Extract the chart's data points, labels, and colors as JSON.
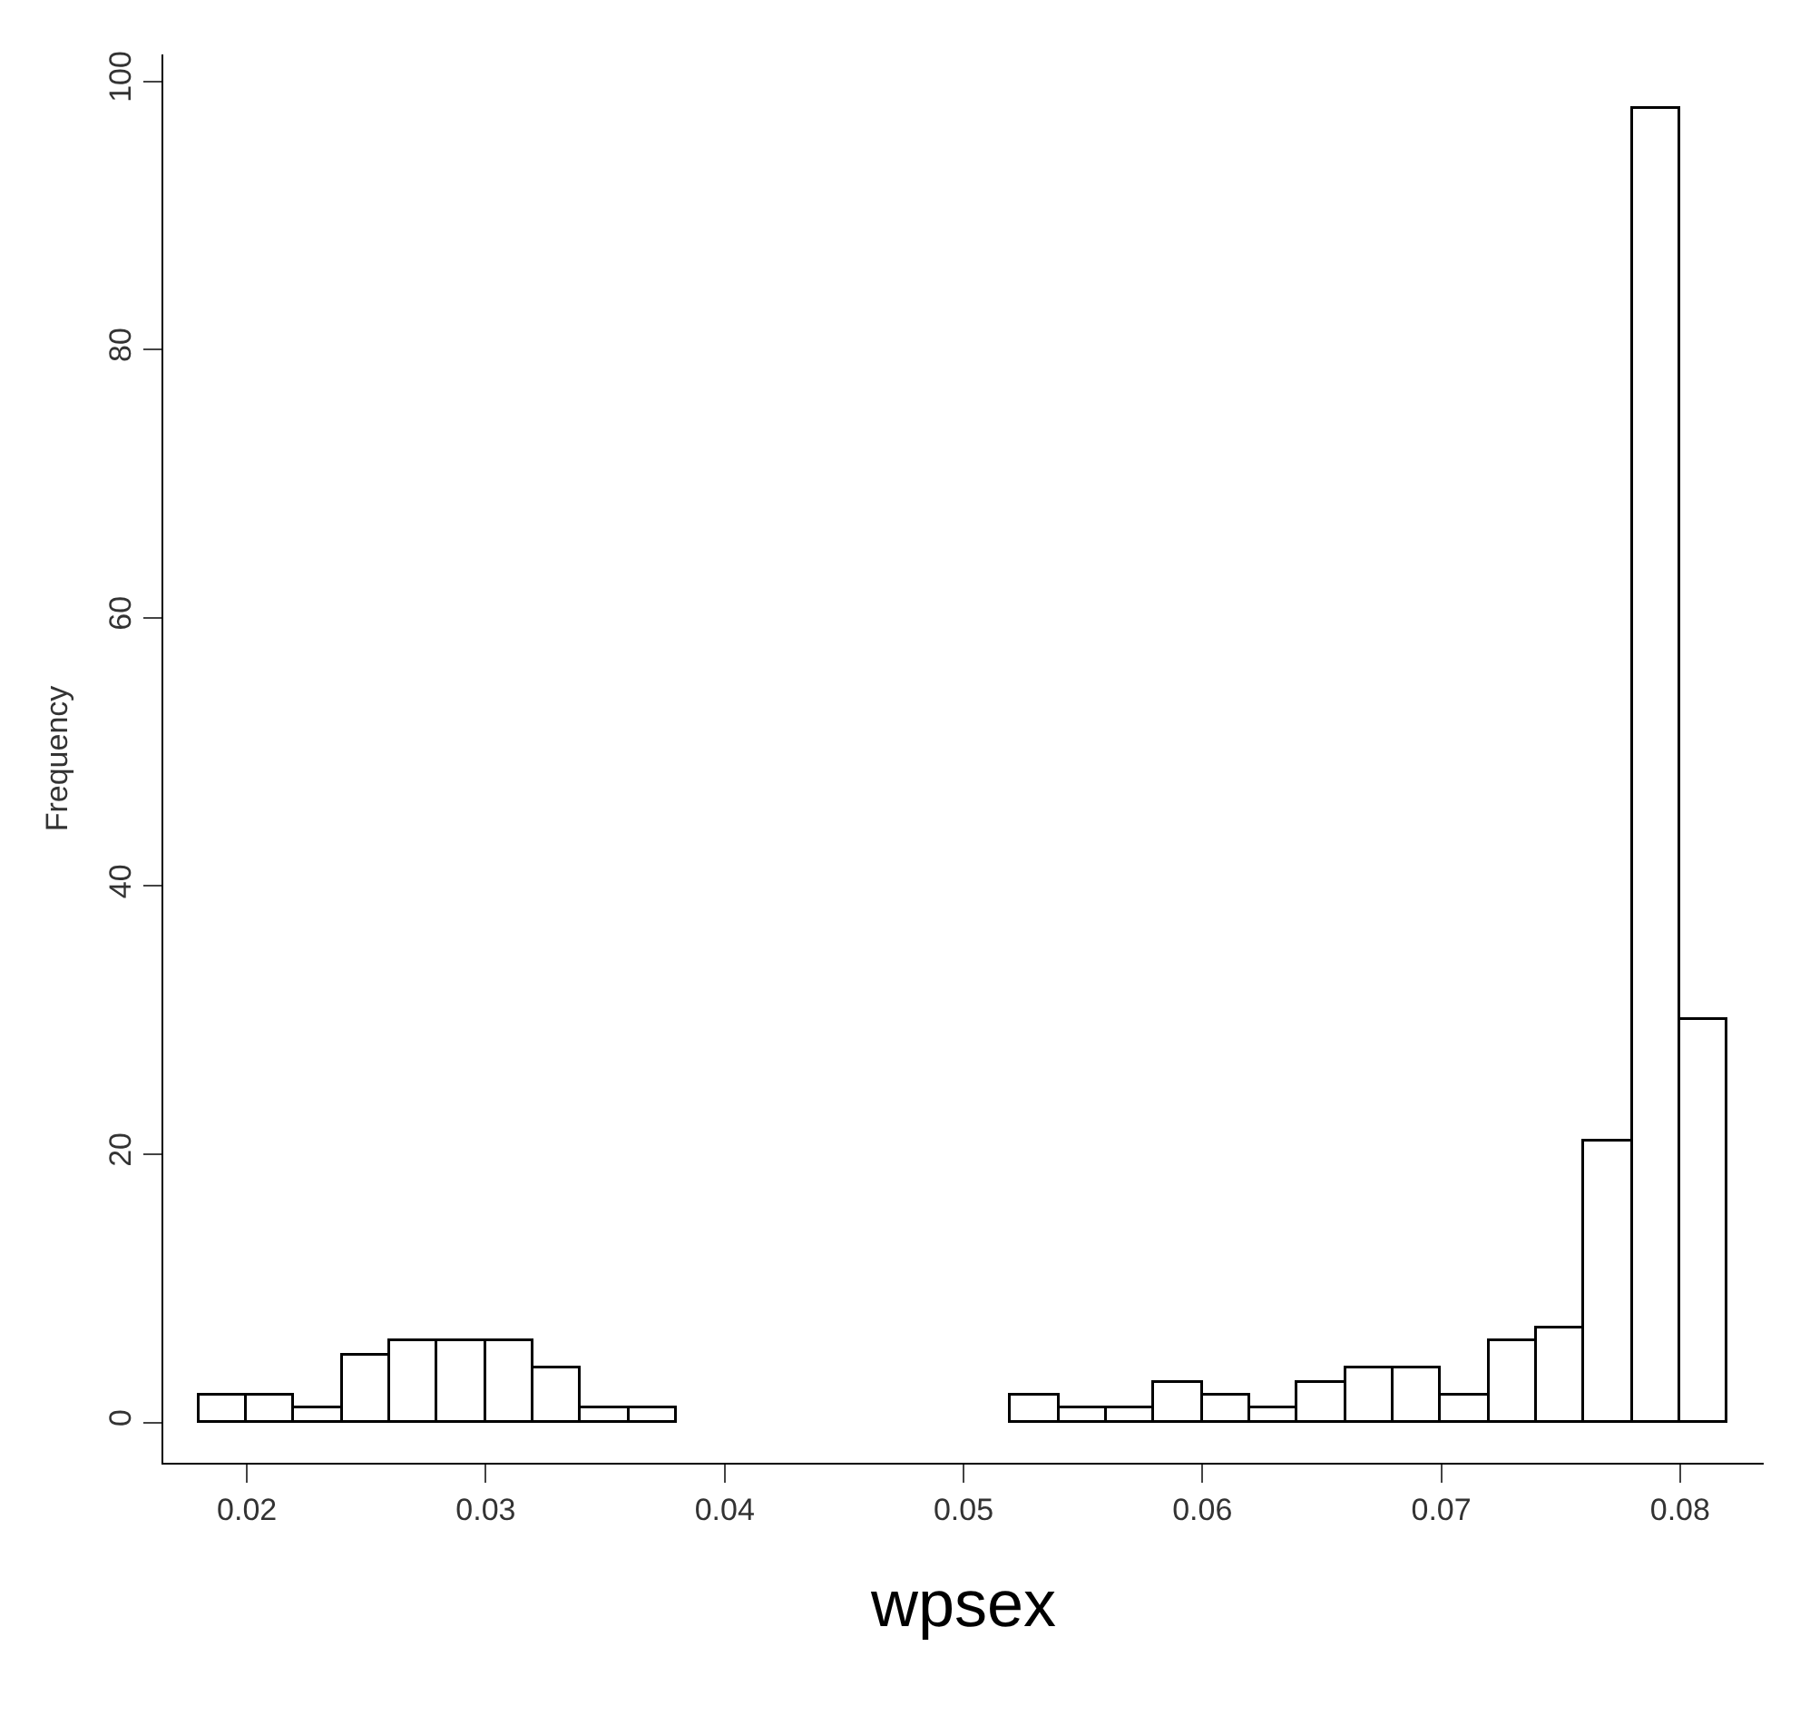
{
  "chart_data": {
    "type": "histogram",
    "xlabel": "wpsex",
    "ylabel": "Frequency",
    "bins": [
      0.018,
      0.02,
      0.022,
      0.024,
      0.026,
      0.028,
      0.03,
      0.032,
      0.034,
      0.036,
      0.038,
      0.04,
      0.042,
      0.044,
      0.046,
      0.048,
      0.05,
      0.052,
      0.054,
      0.056,
      0.058,
      0.06,
      0.062,
      0.064,
      0.066,
      0.068,
      0.07,
      0.072,
      0.074,
      0.076,
      0.078,
      0.08,
      0.082
    ],
    "values": [
      2,
      2,
      1,
      5,
      6,
      6,
      6,
      4,
      1,
      1,
      0,
      0,
      0,
      0,
      0,
      0,
      0,
      2,
      1,
      1,
      3,
      2,
      1,
      3,
      4,
      4,
      2,
      6,
      7,
      21,
      98,
      30
    ],
    "color": "#ffffff",
    "xlim": [
      0.0165,
      0.0835
    ],
    "ylim": [
      -3,
      102
    ],
    "xticks": [
      0.02,
      0.03,
      0.04,
      0.05,
      0.06,
      0.07,
      0.08
    ],
    "yticks": [
      0,
      20,
      40,
      60,
      80,
      100
    ]
  }
}
